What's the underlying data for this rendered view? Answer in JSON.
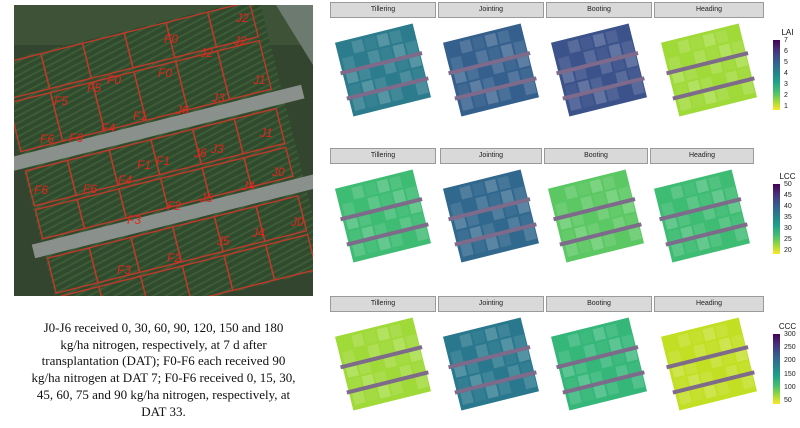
{
  "aerial_labels": [
    "J2",
    "F0",
    "F0",
    "F0",
    "J2",
    "J2",
    "F5",
    "F5",
    "F6",
    "F6",
    "F1",
    "J3",
    "J1",
    "F1",
    "F6",
    "F4",
    "J6",
    "J3",
    "J1",
    "F4",
    "F1",
    "F6",
    "J6",
    "J5",
    "J4",
    "J0",
    "F3",
    "F2",
    "J5",
    "J4",
    "J0",
    "F3",
    "F2"
  ],
  "caption_lines": [
    "J0-J6 received 0, 30, 60, 90, 120, 150 and 180",
    "kg/ha nitrogen, respectively, at 7 d after",
    "transplantation (DAT); F0-F6 each received 90",
    "kg/ha nitrogen at DAT 7; F0-F6 received 0, 15, 30,",
    "45, 60, 75 and 90 kg/ha nitrogen, respectively, at",
    "DAT 33."
  ],
  "stages": [
    "Tillering",
    "Jointing",
    "Booting",
    "Heading"
  ],
  "panels": [
    {
      "legend_title": "LAI",
      "ticks": [
        "7",
        "6",
        "5",
        "4",
        "3",
        "2",
        "1"
      ],
      "tint": [
        "#2c7c8e",
        "#35608d",
        "#3b528b",
        "#a0da39"
      ]
    },
    {
      "legend_title": "LCC",
      "ticks": [
        "50",
        "45",
        "40",
        "35",
        "30",
        "25",
        "20"
      ],
      "tint": [
        "#3fbc73",
        "#31688e",
        "#5cc863",
        "#3fbc73"
      ]
    },
    {
      "legend_title": "CCC",
      "ticks": [
        "300",
        "250",
        "200",
        "150",
        "100",
        "50"
      ],
      "tint": [
        "#a0da39",
        "#2a788e",
        "#35b779",
        "#c2df23"
      ]
    }
  ]
}
